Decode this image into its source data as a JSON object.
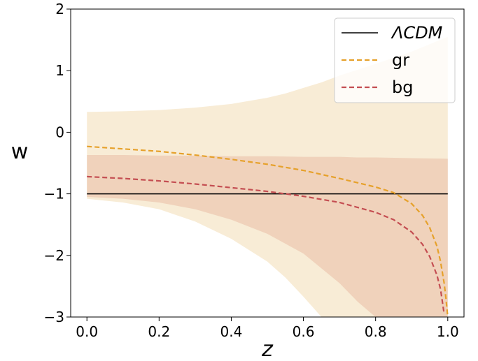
{
  "chart_data": {
    "type": "line",
    "xlabel": "z",
    "ylabel": "w",
    "xlim": [
      -0.045,
      1.045
    ],
    "ylim": [
      -3,
      2
    ],
    "xticks": [
      0.0,
      0.2,
      0.4,
      0.6,
      0.8,
      1.0
    ],
    "xtick_labels": [
      "0.0",
      "0.2",
      "0.4",
      "0.6",
      "0.8",
      "1.0"
    ],
    "yticks": [
      -3,
      -2,
      -1,
      0,
      1,
      2
    ],
    "ytick_labels": [
      "−3",
      "−2",
      "−1",
      "0",
      "1",
      "2"
    ],
    "legend_position": "top-right",
    "grid": false,
    "series": [
      {
        "name": "ΛCDM",
        "style": "solid",
        "color": "#000000",
        "x": [
          0.0,
          1.0
        ],
        "y": [
          -1.0,
          -1.0
        ]
      },
      {
        "name": "gr",
        "style": "dashed",
        "color": "#E6A12B",
        "x": [
          0.0,
          0.1,
          0.2,
          0.3,
          0.4,
          0.5,
          0.6,
          0.7,
          0.75,
          0.8,
          0.85,
          0.9,
          0.93,
          0.95,
          0.97,
          0.98,
          0.99,
          0.995,
          1.0
        ],
        "y": [
          -0.23,
          -0.27,
          -0.31,
          -0.37,
          -0.44,
          -0.52,
          -0.62,
          -0.75,
          -0.82,
          -0.89,
          -0.98,
          -1.16,
          -1.35,
          -1.55,
          -1.85,
          -2.1,
          -2.45,
          -2.7,
          -3.0
        ]
      },
      {
        "name": "bg",
        "style": "dashed",
        "color": "#C44E52",
        "x": [
          0.0,
          0.1,
          0.2,
          0.3,
          0.4,
          0.5,
          0.6,
          0.7,
          0.8,
          0.85,
          0.9,
          0.93,
          0.95,
          0.97,
          0.98,
          0.99
        ],
        "y": [
          -0.72,
          -0.75,
          -0.79,
          -0.84,
          -0.9,
          -0.96,
          -1.04,
          -1.14,
          -1.3,
          -1.42,
          -1.62,
          -1.82,
          -2.02,
          -2.32,
          -2.55,
          -2.95
        ]
      }
    ],
    "bands": [
      {
        "for": "gr",
        "color": "#F6E6C8",
        "opacity": 0.75,
        "x": [
          0.0,
          0.1,
          0.2,
          0.3,
          0.4,
          0.5,
          0.55,
          0.6,
          0.65,
          0.7,
          0.8,
          0.9,
          1.0
        ],
        "upper": [
          0.33,
          0.34,
          0.36,
          0.4,
          0.46,
          0.56,
          0.63,
          0.72,
          0.81,
          0.92,
          1.11,
          1.31,
          1.55
        ],
        "lower": [
          -1.08,
          -1.14,
          -1.25,
          -1.45,
          -1.73,
          -2.1,
          -2.36,
          -2.67,
          -3.0,
          -3.0,
          -3.0,
          -3.0,
          -3.0
        ]
      },
      {
        "for": "bg",
        "color": "#E8B8A0",
        "opacity": 0.5,
        "x": [
          0.0,
          0.1,
          0.2,
          0.3,
          0.4,
          0.5,
          0.6,
          0.7,
          0.75,
          0.8,
          0.9,
          1.0
        ],
        "upper": [
          -0.37,
          -0.37,
          -0.38,
          -0.38,
          -0.39,
          -0.39,
          -0.4,
          -0.4,
          -0.41,
          -0.41,
          -0.42,
          -0.43
        ],
        "lower": [
          -1.05,
          -1.08,
          -1.14,
          -1.25,
          -1.42,
          -1.65,
          -1.97,
          -2.45,
          -2.75,
          -3.0,
          -3.0,
          -3.0
        ]
      }
    ]
  }
}
